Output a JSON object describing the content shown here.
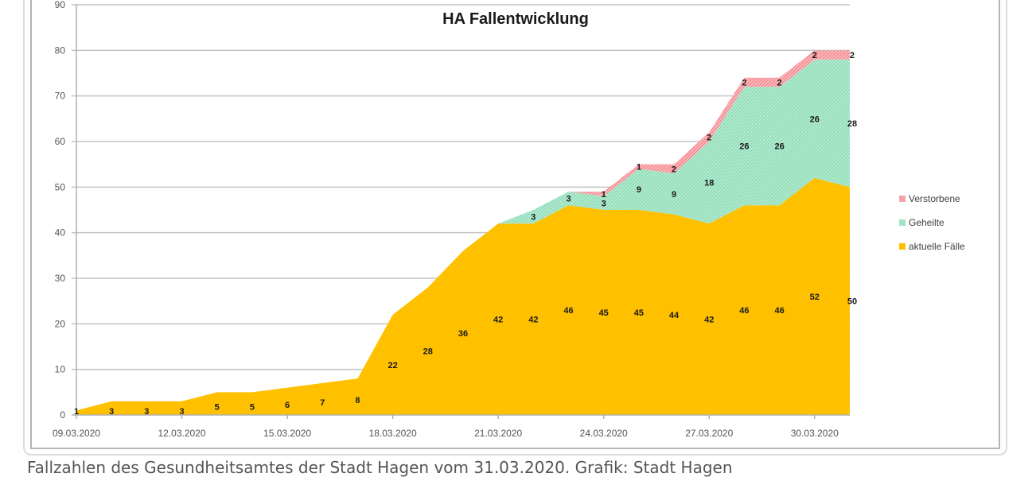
{
  "chart": {
    "title": "HA Fallentwicklung",
    "legend": [
      {
        "label": "Verstorbene",
        "color": "#f7a3a8"
      },
      {
        "label": "Geheilte",
        "color": "#a3e4c5"
      },
      {
        "label": "aktuelle Fälle",
        "color": "#ffc000"
      }
    ],
    "caption": "Fallzahlen des Gesundheitsamtes der Stadt Hagen vom 31.03.2020. Grafik: Stadt Hagen"
  },
  "chart_data": {
    "type": "area",
    "stacked": true,
    "title": "HA Fallentwicklung",
    "xlabel": "",
    "ylabel": "",
    "ylim": [
      0,
      90
    ],
    "yticks": [
      0,
      10,
      20,
      30,
      40,
      50,
      60,
      70,
      80,
      90
    ],
    "grid": true,
    "legend_position": "right",
    "x": [
      "09.03.2020",
      "10.03.2020",
      "11.03.2020",
      "12.03.2020",
      "13.03.2020",
      "14.03.2020",
      "15.03.2020",
      "16.03.2020",
      "17.03.2020",
      "18.03.2020",
      "19.03.2020",
      "20.03.2020",
      "21.03.2020",
      "22.03.2020",
      "23.03.2020",
      "24.03.2020",
      "25.03.2020",
      "26.03.2020",
      "27.03.2020",
      "28.03.2020",
      "29.03.2020",
      "30.03.2020",
      "31.03.2020"
    ],
    "xtick_labels": [
      "09.03.2020",
      "12.03.2020",
      "15.03.2020",
      "18.03.2020",
      "21.03.2020",
      "24.03.2020",
      "27.03.2020",
      "30.03.2020"
    ],
    "series": [
      {
        "name": "aktuelle Fälle",
        "color": "#ffc000",
        "values": [
          1,
          3,
          3,
          3,
          5,
          5,
          6,
          7,
          8,
          22,
          28,
          36,
          42,
          42,
          46,
          45,
          45,
          44,
          42,
          46,
          46,
          52,
          50
        ],
        "labels": [
          1,
          3,
          3,
          3,
          5,
          5,
          6,
          7,
          8,
          22,
          28,
          36,
          42,
          42,
          46,
          45,
          45,
          44,
          42,
          46,
          46,
          52,
          50
        ]
      },
      {
        "name": "Geheilte",
        "color": "#a3e4c5",
        "values": [
          0,
          0,
          0,
          0,
          0,
          0,
          0,
          0,
          0,
          0,
          0,
          0,
          0,
          3,
          3,
          3,
          9,
          9,
          18,
          26,
          26,
          26,
          28
        ],
        "labels": [
          null,
          null,
          null,
          null,
          null,
          null,
          null,
          null,
          null,
          null,
          null,
          null,
          null,
          3,
          3,
          3,
          9,
          9,
          18,
          26,
          26,
          26,
          28
        ]
      },
      {
        "name": "Verstorbene",
        "color": "#f7a3a8",
        "values": [
          0,
          0,
          0,
          0,
          0,
          0,
          0,
          0,
          0,
          0,
          0,
          0,
          0,
          0,
          0,
          1,
          1,
          2,
          2,
          2,
          2,
          2,
          2
        ],
        "labels": [
          null,
          null,
          null,
          null,
          null,
          null,
          null,
          null,
          null,
          null,
          null,
          null,
          null,
          null,
          null,
          1,
          1,
          2,
          2,
          2,
          2,
          2,
          2
        ]
      }
    ]
  }
}
